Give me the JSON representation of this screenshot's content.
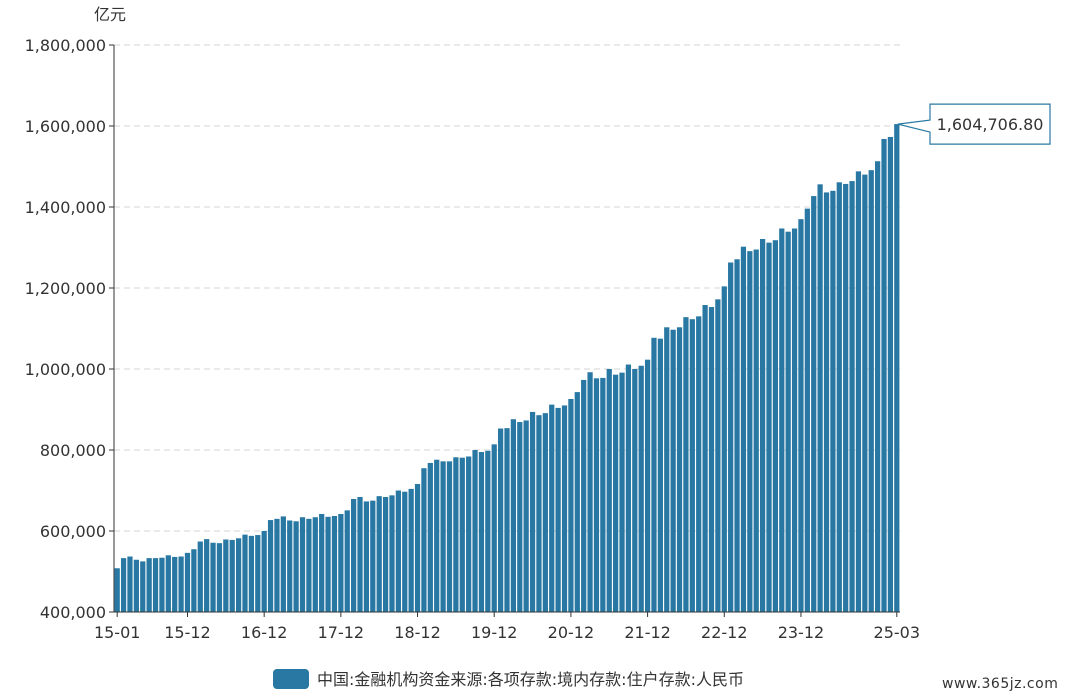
{
  "chart_data": {
    "type": "bar",
    "unit": "亿元",
    "ylim": [
      400000,
      1800000
    ],
    "yticks": [
      400000,
      600000,
      800000,
      1000000,
      1200000,
      1400000,
      1600000,
      1800000
    ],
    "ytick_labels": [
      "400,000",
      "600,000",
      "800,000",
      "1,000,000",
      "1,200,000",
      "1,400,000",
      "1,600,000",
      "1,800,000"
    ],
    "xtick_labels": [
      "15-01",
      "15-12",
      "16-12",
      "17-12",
      "18-12",
      "19-12",
      "20-12",
      "21-12",
      "22-12",
      "23-12",
      "25-03"
    ],
    "xtick_index": [
      0,
      11,
      23,
      35,
      47,
      59,
      71,
      83,
      95,
      107,
      122
    ],
    "grid": true,
    "legend_position": "bottom",
    "color": "#2878a3",
    "series": [
      {
        "name": "中国:金融机构资金来源:各项存款:境内存款:住户存款:人民币",
        "values": [
          508000,
          533000,
          537000,
          529000,
          525000,
          533000,
          533000,
          534000,
          540000,
          536000,
          537000,
          546000,
          555000,
          574000,
          580000,
          571000,
          570000,
          579000,
          578000,
          582000,
          591000,
          588000,
          590000,
          600000,
          627000,
          630000,
          636000,
          626000,
          624000,
          634000,
          630000,
          634000,
          642000,
          635000,
          637000,
          642000,
          651000,
          679000,
          684000,
          673000,
          675000,
          686000,
          684000,
          688000,
          700000,
          697000,
          704000,
          716000,
          755000,
          768000,
          776000,
          772000,
          772000,
          782000,
          781000,
          784000,
          800000,
          795000,
          798000,
          814000,
          853000,
          854000,
          876000,
          869000,
          873000,
          894000,
          886000,
          891000,
          912000,
          904000,
          910000,
          926000,
          943000,
          973000,
          992000,
          977000,
          978000,
          1000000,
          986000,
          991000,
          1011000,
          1000000,
          1008000,
          1023000,
          1077000,
          1075000,
          1103000,
          1097000,
          1103000,
          1128000,
          1123000,
          1130000,
          1158000,
          1153000,
          1172000,
          1204000,
          1263000,
          1271000,
          1302000,
          1291000,
          1295000,
          1321000,
          1312000,
          1318000,
          1347000,
          1339000,
          1347000,
          1370000,
          1396000,
          1427000,
          1456000,
          1436000,
          1440000,
          1461000,
          1457000,
          1464000,
          1488000,
          1480000,
          1491000,
          1513000,
          1568000,
          1573000,
          1604706.8
        ]
      }
    ],
    "callout": {
      "index": 122,
      "label": "1,604,706.80"
    }
  },
  "watermark": "www.365jz.com"
}
